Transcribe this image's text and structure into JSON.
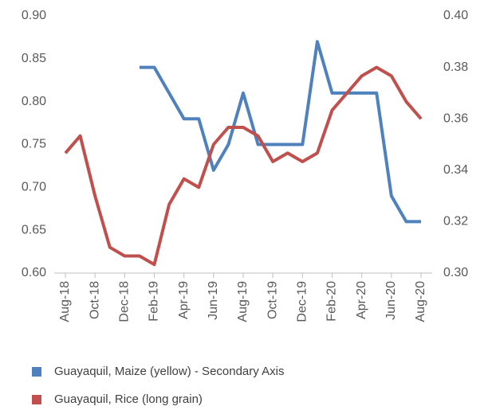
{
  "chart_data": {
    "type": "line",
    "categories": [
      "Aug-18",
      null,
      "Oct-18",
      null,
      "Dec-18",
      null,
      "Feb-19",
      null,
      "Apr-19",
      null,
      "Jun-19",
      null,
      "Aug-19",
      null,
      "Oct-19",
      null,
      "Dec-19",
      null,
      "Feb-20",
      null,
      "Apr-20",
      null,
      "Jun-20",
      null,
      "Aug-20"
    ],
    "series": [
      {
        "name": "Guayaquil, Maize (yellow) - Secondary Axis",
        "color": "#4f81bd",
        "axis": "y2",
        "values": [
          null,
          null,
          null,
          null,
          null,
          0.38,
          0.38,
          0.37,
          0.36,
          0.36,
          0.34,
          0.35,
          0.37,
          0.35,
          0.35,
          0.35,
          0.35,
          0.39,
          0.37,
          0.37,
          0.37,
          0.37,
          0.33,
          0.32,
          0.32
        ]
      },
      {
        "name": "Guayaquil, Rice (long grain)",
        "color": "#c0504d",
        "values": [
          0.74,
          0.76,
          0.69,
          0.63,
          0.62,
          0.62,
          0.61,
          0.68,
          0.71,
          0.7,
          0.75,
          0.77,
          0.77,
          0.76,
          0.73,
          0.74,
          0.73,
          0.74,
          0.79,
          0.81,
          0.83,
          0.84,
          0.83,
          0.8,
          0.78
        ]
      }
    ],
    "ylim": [
      0.6,
      0.9
    ],
    "yticks": [
      {
        "value": 0.6,
        "label": "0.60"
      },
      0.65,
      {
        "value": 0.7,
        "label": "0.70"
      },
      0.75,
      {
        "value": 0.8,
        "label": "0.80"
      },
      0.85,
      {
        "value": 0.9,
        "label": "0.90"
      }
    ],
    "y2lim": [
      0.3,
      0.4
    ],
    "y2ticks": [
      {
        "value": 0.3,
        "label": "0.30"
      },
      0.32,
      0.34,
      0.36,
      0.38,
      {
        "value": 0.4,
        "label": "0.40"
      }
    ],
    "grid": false,
    "legend": "bottom"
  }
}
